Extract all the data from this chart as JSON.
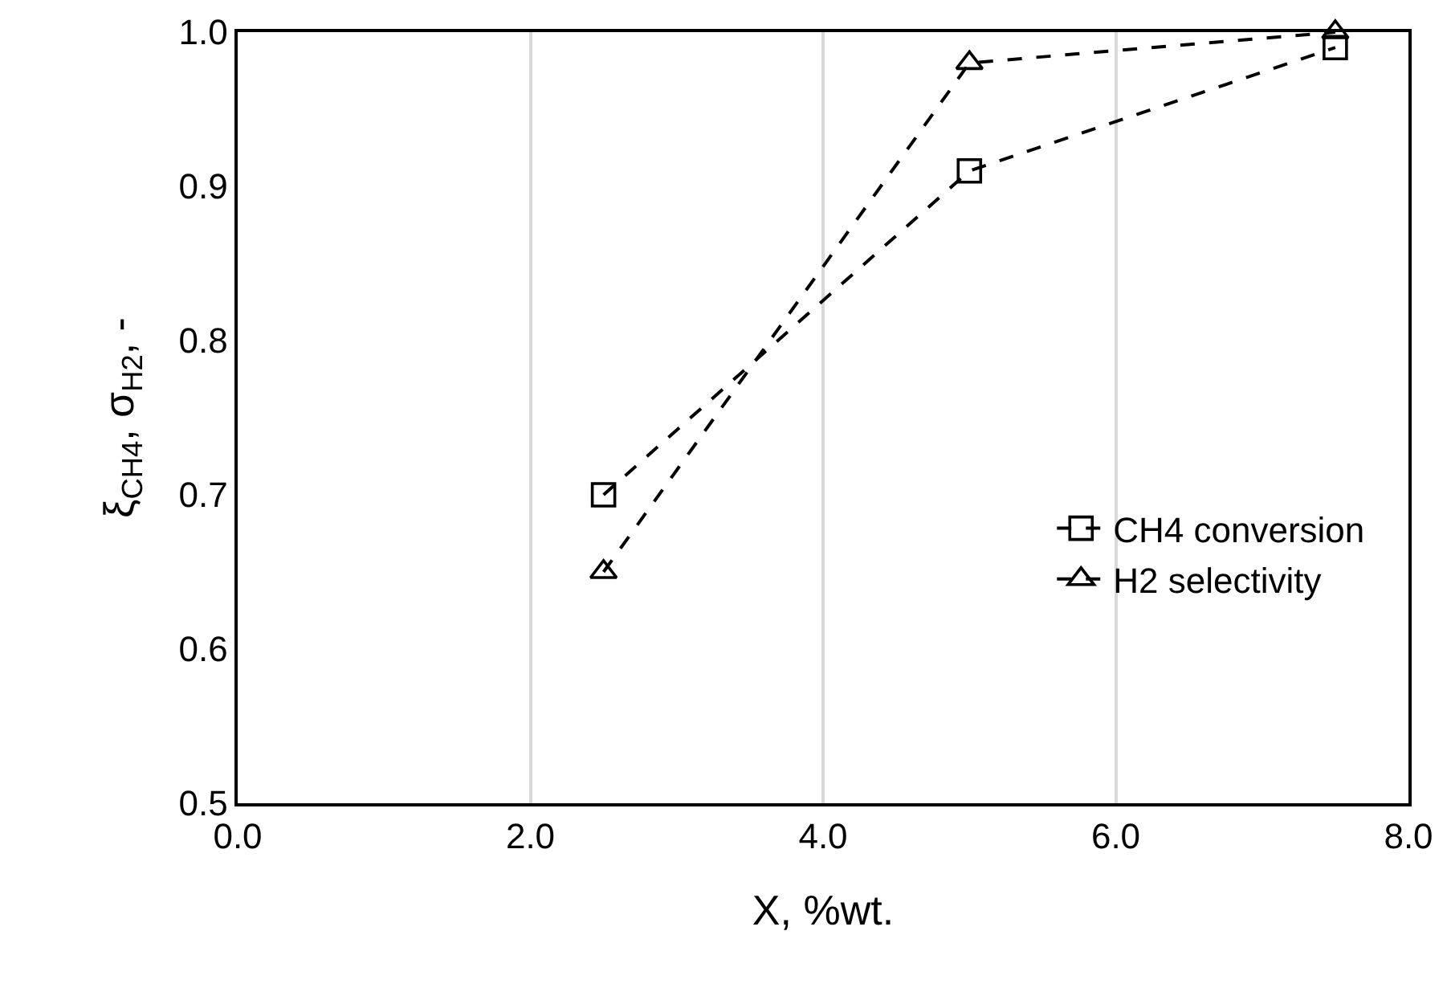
{
  "chart_data": {
    "type": "line",
    "xlabel": "X, %wt.",
    "ylabel": "ξ$_{CH4}$, σ$_{H2}$, -",
    "x": [
      2.5,
      5,
      7.5
    ],
    "series": [
      {
        "name": "CH4 conversion",
        "color": "#000000",
        "values": [
          0.7,
          0.91,
          0.99
        ],
        "marker": "square"
      },
      {
        "name": "H2 selectivity",
        "color": "#000000",
        "values": [
          0.65,
          0.98,
          1.0
        ],
        "marker": "triangle"
      }
    ],
    "xlim": [
      0,
      8
    ],
    "xticks": [
      {
        "value": 0,
        "label": "0.0"
      },
      {
        "value": 2,
        "label": "2.0"
      },
      {
        "value": 4,
        "label": "4.0"
      },
      {
        "value": 6,
        "label": "6.0"
      },
      {
        "value": 8,
        "label": "8.0"
      }
    ],
    "ylim": [
      0.5,
      1.0
    ],
    "yticks": [
      0.5,
      0.6,
      0.7,
      0.8,
      0.9,
      {
        "value": 1.0,
        "label": "1.0"
      }
    ],
    "grid": "x",
    "legend": "bottom right",
    "line_style": "dashed"
  }
}
